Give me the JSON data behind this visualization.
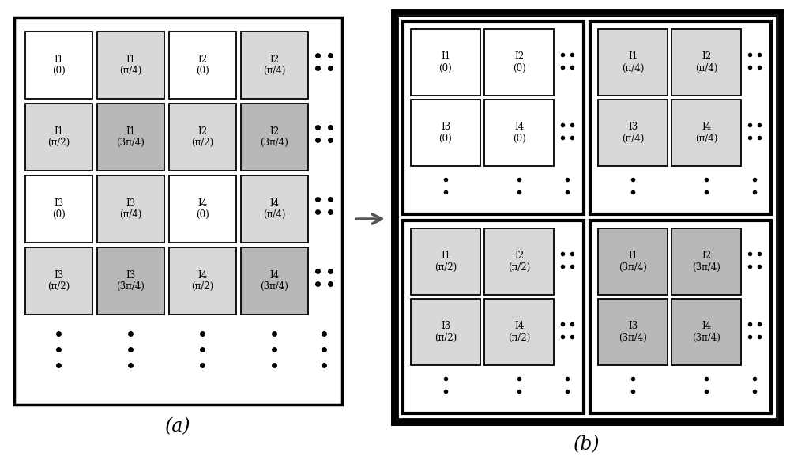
{
  "fig_width": 10.0,
  "fig_height": 5.77,
  "bg_color": "#ffffff",
  "text_color": "#000000",
  "cell_white": "#ffffff",
  "cell_light": "#d8d8d8",
  "cell_medium": "#b8b8b8",
  "panel_a": {
    "rows": [
      [
        {
          "label": "I1\n(0)",
          "shade": "white"
        },
        {
          "label": "I1\n(π/4)",
          "shade": "light"
        },
        {
          "label": "I2\n(0)",
          "shade": "white"
        },
        {
          "label": "I2\n(π/4)",
          "shade": "light"
        }
      ],
      [
        {
          "label": "I1\n(π/2)",
          "shade": "light"
        },
        {
          "label": "I1\n(3π/4)",
          "shade": "medium"
        },
        {
          "label": "I2\n(π/2)",
          "shade": "light"
        },
        {
          "label": "I2\n(3π/4)",
          "shade": "medium"
        }
      ],
      [
        {
          "label": "I3\n(0)",
          "shade": "white"
        },
        {
          "label": "I3\n(π/4)",
          "shade": "light"
        },
        {
          "label": "I4\n(0)",
          "shade": "white"
        },
        {
          "label": "I4\n(π/4)",
          "shade": "light"
        }
      ],
      [
        {
          "label": "I3\n(π/2)",
          "shade": "light"
        },
        {
          "label": "I3\n(3π/4)",
          "shade": "medium"
        },
        {
          "label": "I4\n(π/2)",
          "shade": "light"
        },
        {
          "label": "I4\n(3π/4)",
          "shade": "medium"
        }
      ]
    ]
  },
  "panel_b_quadrants": [
    {
      "pos": "TL",
      "rows": [
        [
          {
            "label": "I1\n(0)",
            "shade": "white"
          },
          {
            "label": "I2\n(0)",
            "shade": "white"
          }
        ],
        [
          {
            "label": "I3\n(0)",
            "shade": "white"
          },
          {
            "label": "I4\n(0)",
            "shade": "white"
          }
        ]
      ]
    },
    {
      "pos": "TR",
      "rows": [
        [
          {
            "label": "I1\n(π/4)",
            "shade": "light"
          },
          {
            "label": "I2\n(π/4)",
            "shade": "light"
          }
        ],
        [
          {
            "label": "I3\n(π/4)",
            "shade": "light"
          },
          {
            "label": "I4\n(π/4)",
            "shade": "light"
          }
        ]
      ]
    },
    {
      "pos": "BL",
      "rows": [
        [
          {
            "label": "I1\n(π/2)",
            "shade": "light"
          },
          {
            "label": "I2\n(π/2)",
            "shade": "light"
          }
        ],
        [
          {
            "label": "I3\n(π/2)",
            "shade": "light"
          },
          {
            "label": "I4\n(π/2)",
            "shade": "light"
          }
        ]
      ]
    },
    {
      "pos": "BR",
      "rows": [
        [
          {
            "label": "I1\n(3π/4)",
            "shade": "medium"
          },
          {
            "label": "I2\n(3π/4)",
            "shade": "medium"
          }
        ],
        [
          {
            "label": "I3\n(3π/4)",
            "shade": "medium"
          },
          {
            "label": "I4\n(3π/4)",
            "shade": "medium"
          }
        ]
      ]
    }
  ],
  "label_a": "(a)",
  "label_b": "(b)"
}
